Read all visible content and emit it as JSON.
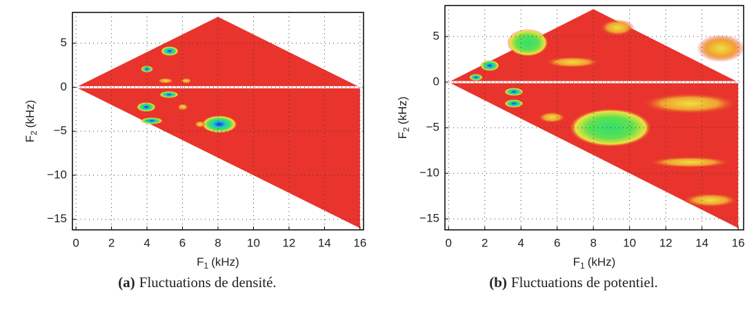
{
  "chart_data": [
    {
      "type": "bicoherence",
      "xlabel": {
        "main": "F",
        "sub": "1",
        "unit": "(kHz)"
      },
      "ylabel": {
        "main": "F",
        "sub": "2",
        "unit": "(kHz)"
      },
      "xlim": [
        -0.2,
        16.2
      ],
      "ylim": [
        -16.2,
        8.5
      ],
      "xticks": [
        0,
        2,
        4,
        6,
        8,
        10,
        12,
        14,
        16
      ],
      "yticks": [
        {
          "value": -15,
          "label": "−15"
        },
        {
          "value": -10,
          "label": "−10"
        },
        {
          "value": -5,
          "label": "−5"
        },
        0,
        5
      ],
      "grid": true,
      "color": "#e8342c",
      "caption": {
        "tag": "(a)",
        "text": "Fluctuations de densité."
      }
    },
    {
      "type": "bicoherence",
      "xlabel": {
        "main": "F",
        "sub": "1",
        "unit": "(kHz)"
      },
      "ylabel": {
        "main": "F",
        "sub": "2",
        "unit": "(kHz)"
      },
      "xlim": [
        -0.2,
        16.3
      ],
      "ylim": [
        -16.2,
        8.4
      ],
      "xticks": [
        0,
        2,
        4,
        6,
        8,
        10,
        12,
        14,
        16
      ],
      "yticks": [
        {
          "value": -15,
          "label": "−15"
        },
        {
          "value": -10,
          "label": "−10"
        },
        {
          "value": -5,
          "label": "−5"
        },
        0,
        5
      ],
      "grid": true,
      "color": "#e8342c",
      "caption": {
        "tag": "(b)",
        "text": "Fluctuations de potentiel."
      }
    }
  ]
}
